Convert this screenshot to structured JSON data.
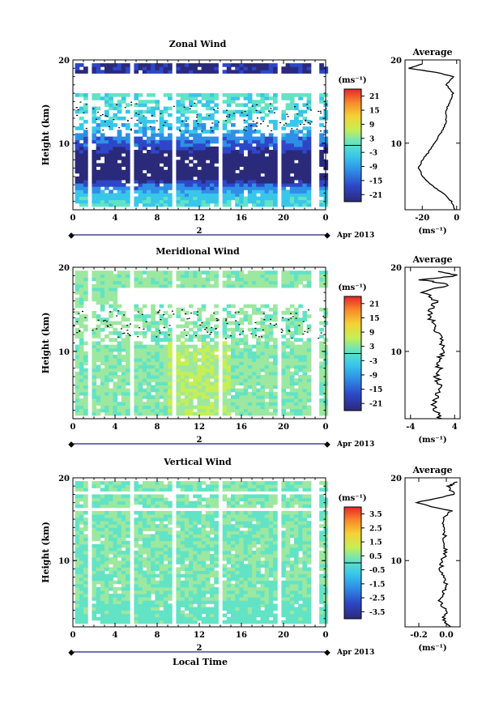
{
  "x_axis_label": "Local Time",
  "date_label": "2",
  "month_label": "Apr 2013",
  "units_label": "(ms⁻¹)",
  "panels": [
    {
      "title": "Zonal Wind",
      "ylabel": "Height (km)",
      "yticks": [
        "20",
        "10"
      ],
      "xticks": [
        "0",
        "4",
        "8",
        "12",
        "16",
        "20",
        "0"
      ],
      "colorbar_ticks": [
        "21",
        "15",
        "9",
        "3",
        "-3",
        "-9",
        "-15",
        "-21"
      ],
      "average_title": "Average",
      "average_xticks": [
        "-20",
        "0"
      ],
      "average_yticks": [
        "20",
        "10"
      ]
    },
    {
      "title": "Meridional Wind",
      "ylabel": "Height (km)",
      "yticks": [
        "20",
        "10"
      ],
      "xticks": [
        "0",
        "4",
        "8",
        "12",
        "16",
        "20",
        "0"
      ],
      "colorbar_ticks": [
        "21",
        "15",
        "9",
        "3",
        "-3",
        "-9",
        "-15",
        "-21"
      ],
      "average_title": "Average",
      "average_xticks": [
        "-4",
        "4"
      ],
      "average_yticks": [
        "20",
        "10"
      ]
    },
    {
      "title": "Vertical Wind",
      "ylabel": "Height (km)",
      "yticks": [
        "20",
        "10"
      ],
      "xticks": [
        "0",
        "4",
        "8",
        "12",
        "16",
        "20",
        "0"
      ],
      "colorbar_ticks": [
        "3.5",
        "2.5",
        "1.5",
        "0.5",
        "-0.5",
        "-1.5",
        "-2.5",
        "-3.5"
      ],
      "average_title": "Average",
      "average_xticks": [
        "-0.2",
        "0.0"
      ],
      "average_yticks": [
        "20",
        "10"
      ]
    }
  ],
  "chart_data": [
    {
      "type": "heatmap",
      "title": "Zonal Wind",
      "ylabel": "Height (km)",
      "xlim": [
        0,
        24
      ],
      "ylim": [
        2,
        20
      ],
      "colorbar_range": [
        -24,
        24
      ],
      "profile": {
        "title": "Average",
        "xlim": [
          -30,
          2
        ],
        "heights": [
          2,
          3,
          4,
          5,
          6,
          7,
          8,
          9,
          10,
          11,
          12,
          13,
          14,
          15,
          16,
          17,
          18,
          18.5,
          19,
          19.5
        ],
        "values": [
          -1,
          -3,
          -8,
          -15,
          -20,
          -22,
          -20,
          -16,
          -13,
          -10,
          -7,
          -6,
          -6,
          -4,
          -2,
          -6,
          -2,
          -12,
          -28,
          -20
        ]
      }
    },
    {
      "type": "heatmap",
      "title": "Meridional Wind",
      "ylabel": "Height (km)",
      "xlim": [
        0,
        24
      ],
      "ylim": [
        2,
        20
      ],
      "colorbar_range": [
        -24,
        24
      ],
      "profile": {
        "title": "Average",
        "xlim": [
          -5,
          5
        ],
        "heights": [
          2,
          3,
          4,
          5,
          6,
          7,
          8,
          9,
          10,
          11,
          12,
          13,
          14,
          15,
          16,
          17,
          18,
          18.5,
          19,
          19.5
        ],
        "values": [
          1.2,
          0.5,
          0.2,
          1.0,
          1.5,
          0.6,
          1.2,
          1.0,
          2.0,
          1.5,
          1.0,
          0.5,
          -0.5,
          -0.3,
          0.5,
          -1.5,
          3.0,
          -2.0,
          4.5,
          1.0
        ]
      }
    },
    {
      "type": "heatmap",
      "title": "Vertical Wind",
      "ylabel": "Height (km)",
      "xlim": [
        0,
        24
      ],
      "ylim": [
        2,
        20
      ],
      "colorbar_range": [
        -4,
        4
      ],
      "profile": {
        "title": "Average",
        "xlim": [
          -0.3,
          0.1
        ],
        "heights": [
          2,
          3,
          4,
          5,
          6,
          7,
          8,
          9,
          10,
          11,
          12,
          13,
          14,
          15,
          16,
          17,
          18,
          19,
          19.5
        ],
        "values": [
          0.02,
          -0.02,
          0.0,
          -0.05,
          -0.03,
          0.0,
          -0.02,
          -0.04,
          -0.03,
          0.0,
          -0.02,
          -0.01,
          -0.03,
          -0.02,
          0.03,
          -0.22,
          0.05,
          0.02,
          0.08
        ]
      }
    }
  ]
}
